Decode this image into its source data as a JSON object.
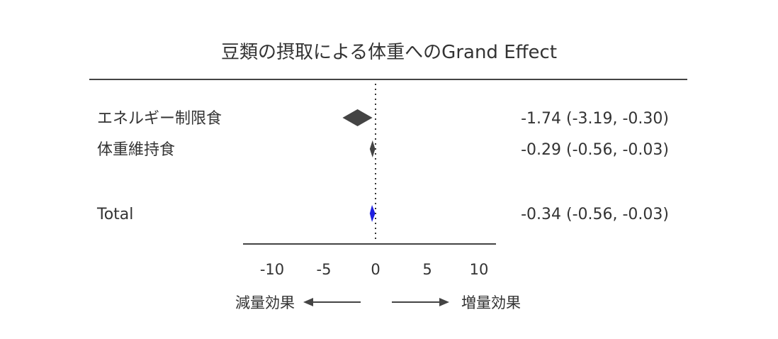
{
  "chart_data": {
    "type": "forest",
    "title": "豆類の摂取による体重へのGrand Effect",
    "xlim": [
      -12,
      13
    ],
    "ticks": [
      -10,
      -5,
      0,
      5,
      10
    ],
    "tick_labels": [
      "-10",
      "-5",
      "0",
      "5",
      "10"
    ],
    "reference_line": 0,
    "rows": [
      {
        "label": "エネルギー制限食",
        "estimate": -1.74,
        "lower": -3.19,
        "upper": -0.3,
        "ci_text": "-1.74 (-3.19, -0.30)",
        "color": "#444444"
      },
      {
        "label": "体重維持食",
        "estimate": -0.29,
        "lower": -0.56,
        "upper": -0.03,
        "ci_text": "-0.29 (-0.56, -0.03)",
        "color": "#444444"
      },
      {
        "label": "Total",
        "estimate": -0.34,
        "lower": -0.56,
        "upper": -0.03,
        "ci_text": "-0.34 (-0.56, -0.03)",
        "color": "#1f1fe0"
      }
    ],
    "direction_left": "減量効果",
    "direction_right": "増量効果"
  }
}
